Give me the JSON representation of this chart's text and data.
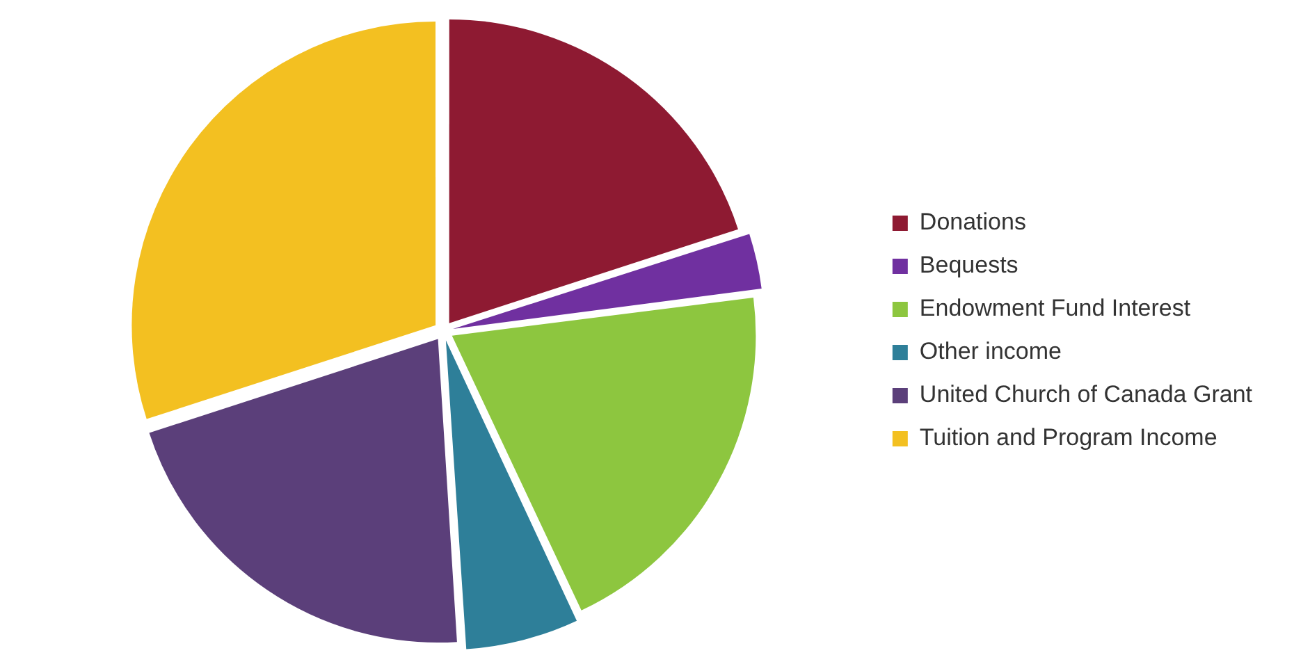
{
  "chart_data": {
    "type": "pie",
    "categories": [
      "Donations",
      "Bequests",
      "Endowment Fund Interest",
      "Other income",
      "United Church of Canada Grant",
      "Tuition and Program Income"
    ],
    "values": [
      20,
      3,
      20,
      6,
      21,
      30
    ],
    "colors": [
      "#8e1a32",
      "#7030a0",
      "#8dc63f",
      "#2e7f99",
      "#5b3f7a",
      "#f3c021"
    ],
    "legend": "right"
  }
}
